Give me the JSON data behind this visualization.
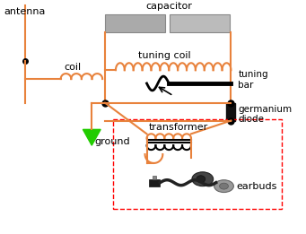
{
  "bg_color": "#ffffff",
  "orange": "#E8823C",
  "black": "#000000",
  "green": "#22CC00",
  "gray_cap1": "#AAAAAA",
  "gray_cap2": "#BBBBBB",
  "labels": {
    "antenna": "antenna",
    "coil": "coil",
    "capacitor": "capacitor",
    "tuning_coil": "tuning coil",
    "tuning_bar": "tuning\nbar",
    "germanium_diode": "germanium\ndiode",
    "ground": "ground",
    "transformer": "transformer",
    "earbuds": "earbuds"
  },
  "figsize": [
    3.41,
    2.61
  ],
  "dpi": 100
}
